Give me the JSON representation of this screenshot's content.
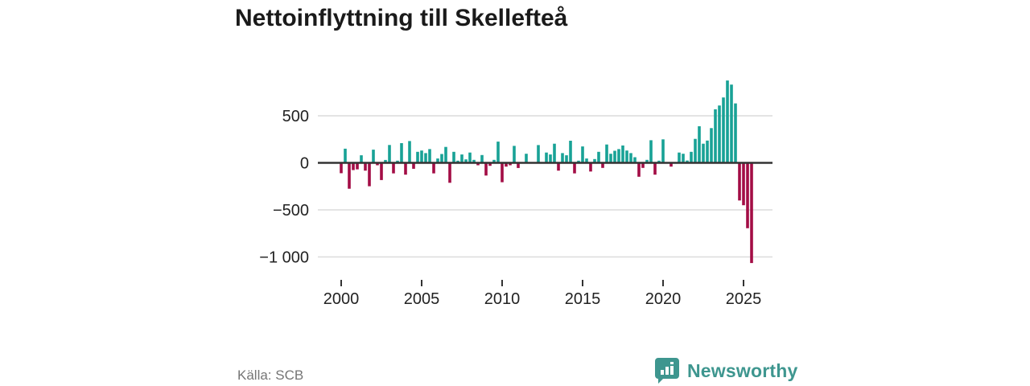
{
  "title": "Nettoinflyttning till Skellefteå",
  "source": "Källa: SCB",
  "logo": {
    "text": "Newsworthy",
    "color": "#3e968f",
    "icon": "speech-bubble-bar-chart"
  },
  "chart_data": {
    "type": "bar",
    "title": "Nettoinflyttning till Skellefteå",
    "xlabel": "",
    "ylabel": "",
    "frequency": "quarterly",
    "start_period": "2000-Q1",
    "end_period": "2025-Q3",
    "values": [
      -110,
      150,
      -275,
      -77,
      -69,
      80,
      -83,
      -249,
      140,
      -26,
      -183,
      31,
      190,
      -112,
      23,
      209,
      -126,
      232,
      -63,
      117,
      131,
      103,
      146,
      -112,
      46,
      94,
      169,
      -212,
      117,
      23,
      89,
      37,
      109,
      32,
      -26,
      83,
      -135,
      -32,
      32,
      226,
      -206,
      -40,
      -26,
      180,
      -55,
      8,
      97,
      8,
      8,
      189,
      8,
      109,
      89,
      203,
      -83,
      103,
      80,
      235,
      -112,
      23,
      174,
      46,
      -92,
      40,
      117,
      -54,
      195,
      97,
      128,
      146,
      185,
      131,
      103,
      60,
      -148,
      -54,
      32,
      240,
      -126,
      23,
      250,
      8,
      -40,
      8,
      109,
      97,
      25,
      117,
      255,
      389,
      203,
      237,
      369,
      569,
      609,
      695,
      875,
      832,
      632,
      -400,
      -450,
      -695,
      -1065
    ],
    "xticks": [
      2000,
      2005,
      2010,
      2015,
      2020,
      2025
    ],
    "yticks": [
      500,
      0,
      -500,
      -1000
    ],
    "ytick_labels": [
      "500",
      "0",
      "−500",
      "−1 000"
    ],
    "ylim": [
      -1100,
      900
    ],
    "grid": true,
    "legend_position": "none",
    "positive_color": "#18a296",
    "negative_color": "#a30d45",
    "zero_line_color": "#333333",
    "grid_color": "#dcdcdc",
    "tick_label_color": "#222222"
  }
}
